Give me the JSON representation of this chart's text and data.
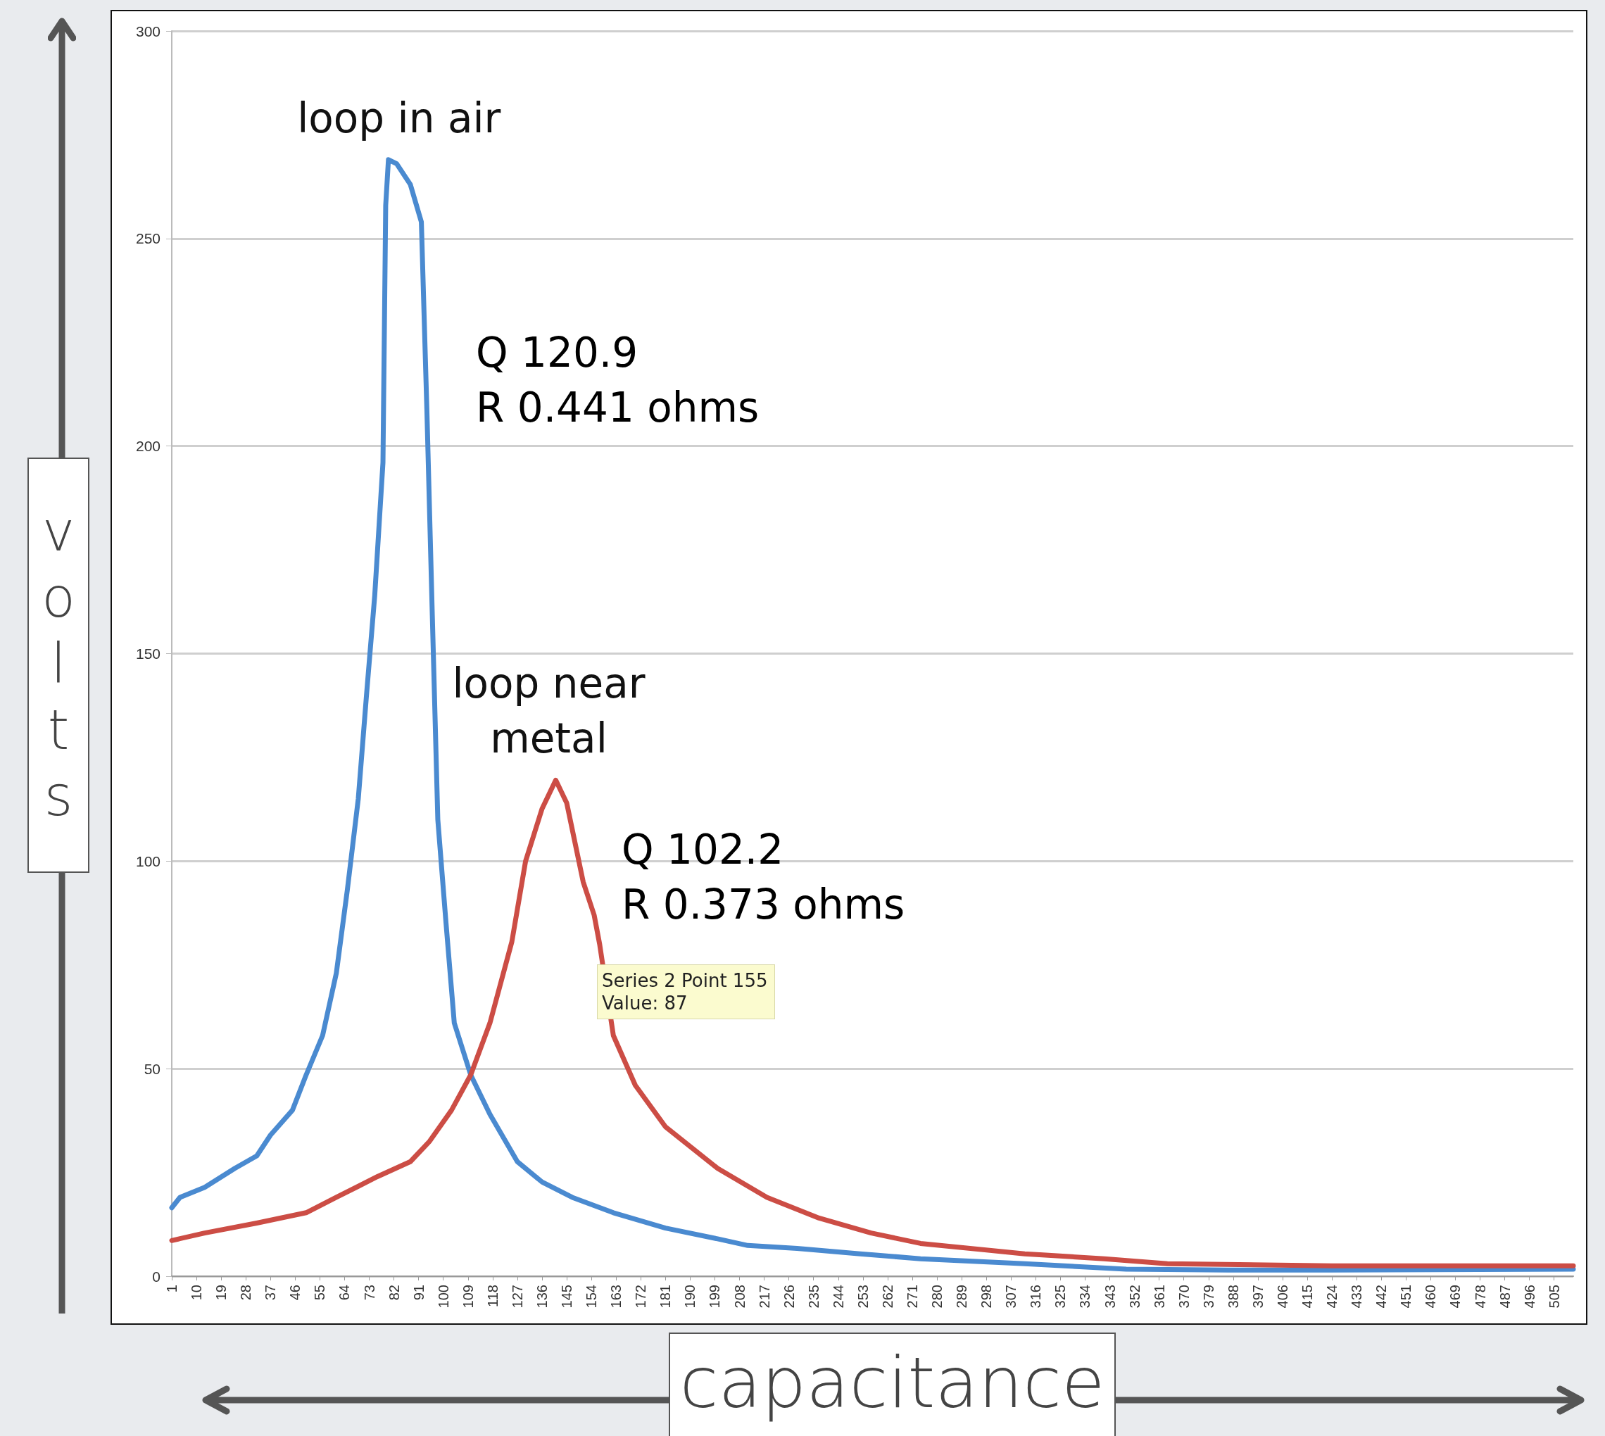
{
  "chart_data": {
    "type": "line",
    "xlabel": "capacitance",
    "ylabel": "volts",
    "xlim": [
      1,
      512
    ],
    "xticks": [
      1,
      10,
      19,
      28,
      37,
      46,
      55,
      64,
      73,
      82,
      91,
      100,
      109,
      118,
      127,
      136,
      145,
      154,
      163,
      172,
      181,
      190,
      199,
      208,
      217,
      226,
      235,
      244,
      253,
      262,
      271,
      280,
      289,
      298,
      307,
      316,
      325,
      334,
      343,
      352,
      361,
      370,
      379,
      388,
      397,
      406,
      415,
      424,
      433,
      442,
      451,
      460,
      469,
      478,
      487,
      496,
      505
    ],
    "ylim": [
      0,
      300
    ],
    "yticks": [
      0,
      50,
      100,
      150,
      200,
      250,
      300
    ],
    "grid": "y",
    "marker": "none",
    "line_style": "solid",
    "series": [
      {
        "color": "#4a8ad0",
        "x": [
          1,
          4,
          13,
          24,
          32,
          37,
          45,
          50,
          56,
          61,
          65,
          69,
          72,
          75,
          78,
          79,
          80,
          83,
          88,
          92,
          94,
          96,
          98,
          101,
          104,
          110,
          117,
          127,
          136,
          147,
          162,
          181,
          200,
          211,
          229,
          252,
          274,
          312,
          349,
          386,
          424,
          512
        ],
        "values": [
          16.5,
          19,
          21.4,
          26,
          29,
          34,
          40,
          48.5,
          58,
          73,
          93,
          115,
          140,
          164,
          196,
          258,
          269,
          268,
          263,
          254,
          209,
          159,
          110,
          85,
          61,
          48.5,
          39,
          27.6,
          22.7,
          19,
          15.3,
          11.6,
          9,
          7.4,
          6.7,
          5.4,
          4.2,
          3,
          1.7,
          1.5,
          1.5,
          1.7
        ]
      },
      {
        "color": "#cc4d45",
        "x": [
          1,
          13,
          32,
          50,
          61,
          76,
          88,
          95,
          103,
          110,
          117,
          125,
          130,
          136,
          141,
          145,
          151,
          155,
          157,
          162,
          170,
          181,
          200,
          218,
          237,
          256,
          274,
          312,
          341,
          364,
          424,
          512
        ],
        "values": [
          8.6,
          10.4,
          12.8,
          15.3,
          19,
          24,
          27.6,
          32.5,
          40,
          48.5,
          61,
          80.6,
          100,
          112.6,
          119.5,
          114,
          95,
          87,
          80,
          58,
          46,
          36,
          26,
          19,
          14,
          10.4,
          7.9,
          5.4,
          4.2,
          3,
          2.5,
          2.5
        ]
      }
    ],
    "annotations": [
      {
        "text": "loop in air",
        "x": 80,
        "y": 269
      },
      "Q 120.9\nR 0.441 ohms",
      {
        "text": "loop near\nmetal",
        "x": 141,
        "y": 119.5
      },
      "Q 102.2\nR 0.373 ohms",
      "Series 2 Point 155\nValue: 87"
    ]
  }
}
